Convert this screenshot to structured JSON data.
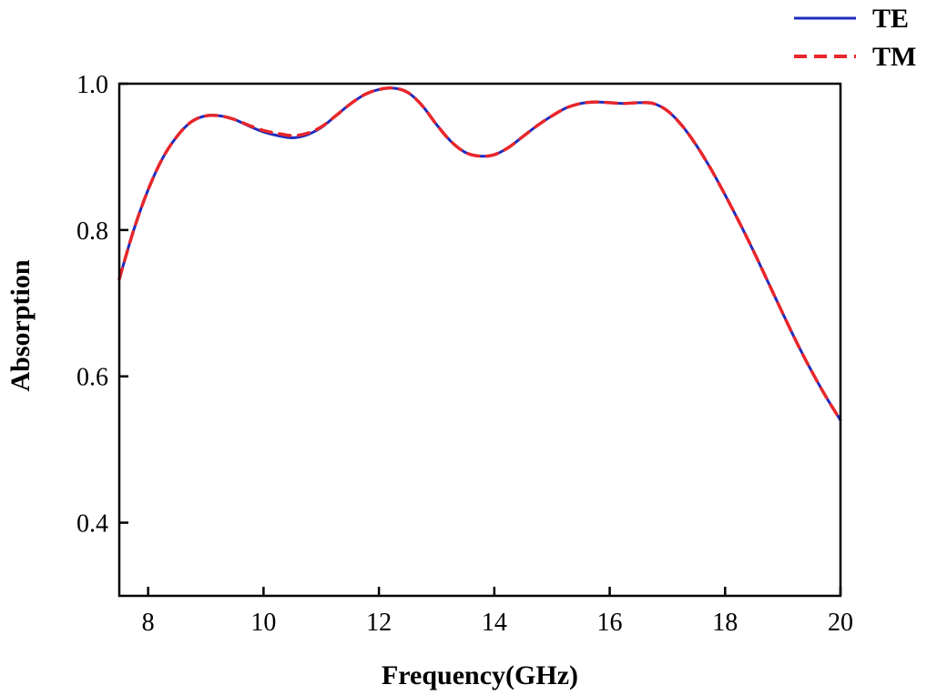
{
  "chart_data": {
    "type": "line",
    "title": "",
    "xlabel": "Frequency(GHz)",
    "ylabel": "Absorption",
    "xlim": [
      7.5,
      20
    ],
    "ylim": [
      0.3,
      1.0
    ],
    "xticks": [
      8,
      10,
      12,
      14,
      16,
      18,
      20
    ],
    "yticks": [
      0.4,
      0.6,
      0.8,
      1.0
    ],
    "xtick_labels": [
      "8",
      "10",
      "12",
      "14",
      "16",
      "18",
      "20"
    ],
    "ytick_labels": [
      "0.4",
      "0.6",
      "0.8",
      "1.0"
    ],
    "grid": false,
    "legend_position": "top-right",
    "series": [
      {
        "name": "TE",
        "color": "#1f2bbf",
        "style": "solid",
        "x": [
          7.5,
          7.75,
          8.0,
          8.25,
          8.5,
          8.75,
          9.0,
          9.25,
          9.5,
          9.75,
          10.0,
          10.25,
          10.5,
          10.75,
          11.0,
          11.25,
          11.5,
          11.75,
          12.0,
          12.25,
          12.5,
          12.75,
          13.0,
          13.25,
          13.5,
          13.75,
          14.0,
          14.25,
          14.5,
          14.75,
          15.0,
          15.25,
          15.5,
          15.75,
          16.0,
          16.25,
          16.5,
          16.75,
          17.0,
          17.25,
          17.5,
          17.75,
          18.0,
          18.25,
          18.5,
          18.75,
          19.0,
          19.25,
          19.5,
          19.75,
          20.0
        ],
        "y": [
          0.733,
          0.8,
          0.855,
          0.898,
          0.928,
          0.948,
          0.956,
          0.956,
          0.951,
          0.942,
          0.934,
          0.929,
          0.926,
          0.93,
          0.94,
          0.956,
          0.972,
          0.985,
          0.992,
          0.994,
          0.988,
          0.97,
          0.944,
          0.921,
          0.906,
          0.901,
          0.903,
          0.913,
          0.928,
          0.943,
          0.956,
          0.967,
          0.973,
          0.975,
          0.974,
          0.973,
          0.974,
          0.973,
          0.963,
          0.943,
          0.916,
          0.884,
          0.848,
          0.81,
          0.77,
          0.728,
          0.686,
          0.645,
          0.607,
          0.572,
          0.54
        ]
      },
      {
        "name": "TM",
        "color": "#e8262b",
        "style": "dashed",
        "x": [
          7.5,
          7.75,
          8.0,
          8.25,
          8.5,
          8.75,
          9.0,
          9.25,
          9.5,
          9.75,
          10.0,
          10.25,
          10.5,
          10.75,
          11.0,
          11.25,
          11.5,
          11.75,
          12.0,
          12.25,
          12.5,
          12.75,
          13.0,
          13.25,
          13.5,
          13.75,
          14.0,
          14.25,
          14.5,
          14.75,
          15.0,
          15.25,
          15.5,
          15.75,
          16.0,
          16.25,
          16.5,
          16.75,
          17.0,
          17.25,
          17.5,
          17.75,
          18.0,
          18.25,
          18.5,
          18.75,
          19.0,
          19.25,
          19.5,
          19.75,
          20.0
        ],
        "y": [
          0.733,
          0.8,
          0.855,
          0.898,
          0.928,
          0.948,
          0.956,
          0.956,
          0.951,
          0.943,
          0.936,
          0.932,
          0.929,
          0.932,
          0.941,
          0.956,
          0.972,
          0.985,
          0.992,
          0.994,
          0.988,
          0.97,
          0.944,
          0.921,
          0.906,
          0.901,
          0.903,
          0.913,
          0.928,
          0.943,
          0.956,
          0.967,
          0.973,
          0.975,
          0.974,
          0.973,
          0.974,
          0.973,
          0.963,
          0.943,
          0.916,
          0.884,
          0.848,
          0.81,
          0.77,
          0.728,
          0.686,
          0.645,
          0.607,
          0.572,
          0.54
        ]
      }
    ]
  }
}
